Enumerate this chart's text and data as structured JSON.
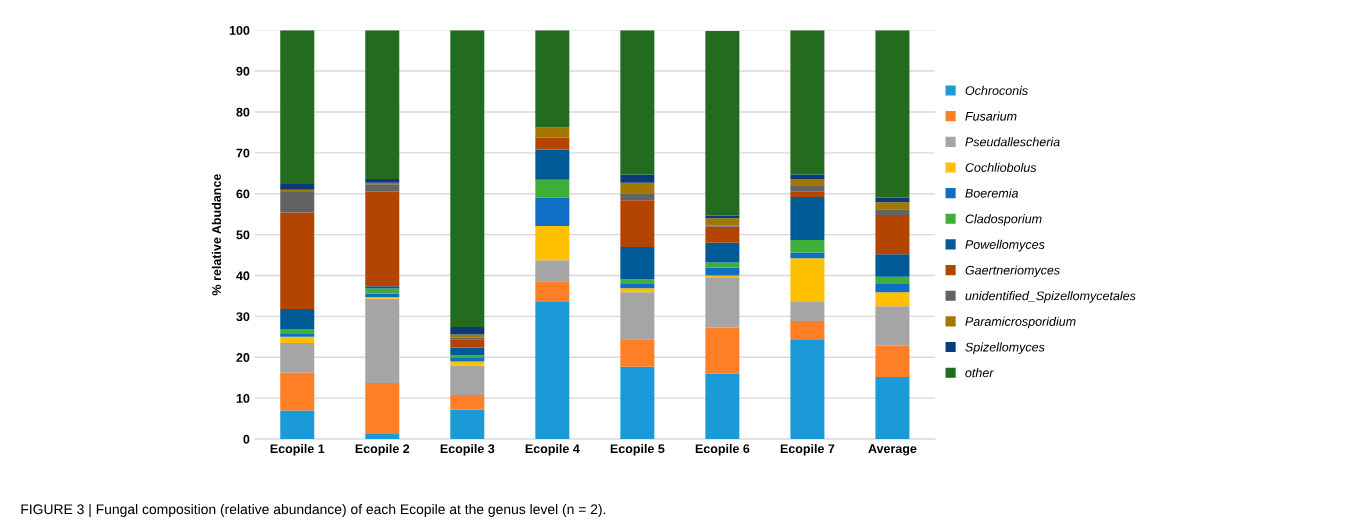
{
  "chart_data": {
    "type": "bar",
    "stacked": true,
    "ylabel": "% relative Abudance",
    "categories": [
      "Ecopile 1",
      "Ecopile 2",
      "Ecopile 3",
      "Ecopile 4",
      "Ecopile 5",
      "Ecopile 6",
      "Ecopile 7",
      "Average"
    ],
    "series": [
      {
        "name": "Ochroconis",
        "color": "#1a9bd7",
        "values": [
          7,
          1.4,
          7.2,
          33.5,
          17.7,
          16.0,
          24.4,
          15.2
        ]
      },
      {
        "name": "Fusarium",
        "color": "#ff7f27",
        "values": [
          9.3,
          12.3,
          3.6,
          5.1,
          6.7,
          11.3,
          4.5,
          7.6
        ]
      },
      {
        "name": "Pseudallescheria",
        "color": "#a5a5a5",
        "values": [
          7.2,
          20.6,
          7.2,
          5.1,
          11.5,
          12.3,
          4.8,
          9.7
        ]
      },
      {
        "name": "Cochliobolus",
        "color": "#ffc000",
        "values": [
          1.5,
          0.4,
          1.0,
          8.4,
          1.0,
          0.4,
          10.5,
          3.4
        ]
      },
      {
        "name": "Boeremia",
        "color": "#0f6fc6",
        "values": [
          0.7,
          0.9,
          0.8,
          6.9,
          1.2,
          1.9,
          1.4,
          2.0
        ]
      },
      {
        "name": "Cladosporium",
        "color": "#3fae3a",
        "values": [
          1.1,
          1.2,
          0.7,
          4.4,
          1.0,
          1.3,
          3.1,
          1.8
        ]
      },
      {
        "name": "Powellomyces",
        "color": "#005a96",
        "values": [
          5.0,
          0.6,
          1.9,
          7.4,
          7.9,
          4.8,
          10.5,
          5.5
        ]
      },
      {
        "name": "Gaertneriomyces",
        "color": "#b34500",
        "values": [
          23.6,
          23.1,
          2.0,
          2.9,
          11.4,
          3.9,
          1.4,
          9.6
        ]
      },
      {
        "name": "unidentified_Spizellomycetales",
        "color": "#636363",
        "values": [
          5.0,
          1.8,
          0.4,
          0,
          1.7,
          0.3,
          1.3,
          1.4
        ]
      },
      {
        "name": "Paramicrosporidium",
        "color": "#a67700",
        "values": [
          0.6,
          0.4,
          0.8,
          2.5,
          2.6,
          1.8,
          1.7,
          1.7
        ]
      },
      {
        "name": "Spizellomyces",
        "color": "#0a3a78",
        "values": [
          1.4,
          0.9,
          1.8,
          null,
          2.0,
          0.7,
          1.1,
          1.2
        ]
      },
      {
        "name": "other",
        "color": "#236b1e",
        "values": [
          37.6,
          36.4,
          72.6,
          23.8,
          35.3,
          45.1,
          35.3,
          40.9
        ]
      }
    ],
    "ylim": [
      0,
      100
    ],
    "yticks": [
      0,
      10,
      20,
      30,
      40,
      50,
      60,
      70,
      80,
      90,
      100
    ],
    "grid": "y",
    "legend": "right",
    "annotations": [
      "FIGURE 3 | Fungal composition (relative abundance) of each Ecopile at the genus level (n = 2)."
    ]
  }
}
